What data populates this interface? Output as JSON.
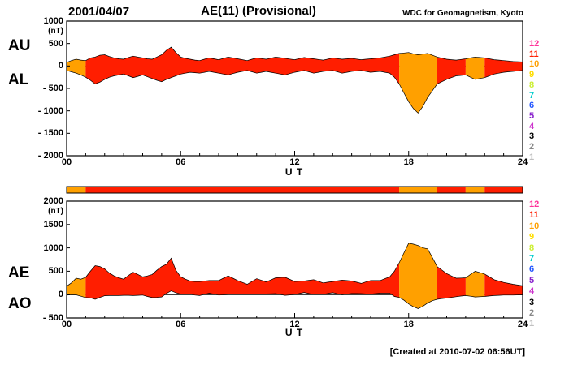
{
  "header": {
    "date": "2001/04/07",
    "title": "AE(11) (Provisional)",
    "credit": "WDC for Geomagnetism, Kyoto"
  },
  "footer": {
    "created": "[Created at 2010-07-02 06:56UT]"
  },
  "legend": {
    "values": [
      "12",
      "11",
      "10",
      "9",
      "8",
      "7",
      "6",
      "5",
      "4",
      "3",
      "2",
      "1"
    ],
    "colors": [
      "#ff3399",
      "#ff1e00",
      "#ffa000",
      "#ffdd00",
      "#ccee33",
      "#00cccc",
      "#2255ff",
      "#8822cc",
      "#cc33cc",
      "#000000",
      "#888888",
      "#c0c0c0"
    ]
  },
  "station_segments": [
    {
      "start": 0,
      "end": 1,
      "stations": 10
    },
    {
      "start": 1,
      "end": 17.5,
      "stations": 11
    },
    {
      "start": 17.5,
      "end": 19.5,
      "stations": 10
    },
    {
      "start": 19.5,
      "end": 21,
      "stations": 11
    },
    {
      "start": 21,
      "end": 22,
      "stations": 10
    },
    {
      "start": 22,
      "end": 24,
      "stations": 11
    }
  ],
  "chart_data": [
    {
      "type": "area",
      "name": "AU-AL panel",
      "left_labels": [
        "AU",
        "AL"
      ],
      "unit": "(nT)",
      "xlabel": "U T",
      "xlim": [
        0,
        24
      ],
      "ylim": [
        -2000,
        1000
      ],
      "ytick_values": [
        1000,
        500,
        0,
        -500,
        -1000,
        -1500,
        -2000
      ],
      "yticks": [
        "1000",
        "500",
        "0",
        "- 500",
        "- 1000",
        "- 1500",
        "- 2000"
      ],
      "xtick_values": [
        0,
        6,
        12,
        18,
        24
      ],
      "xticks": [
        "00",
        "06",
        "12",
        "18",
        "24"
      ],
      "x_step_hours": 0.25,
      "series": [
        {
          "name": "AU",
          "values": [
            80,
            120,
            150,
            130,
            120,
            180,
            200,
            240,
            250,
            210,
            180,
            160,
            150,
            190,
            220,
            200,
            180,
            160,
            150,
            200,
            250,
            350,
            420,
            300,
            200,
            170,
            150,
            130,
            120,
            150,
            180,
            160,
            140,
            170,
            200,
            180,
            160,
            140,
            120,
            150,
            180,
            165,
            150,
            175,
            200,
            185,
            170,
            155,
            140,
            165,
            190,
            175,
            160,
            145,
            130,
            155,
            180,
            165,
            150,
            160,
            170,
            155,
            140,
            150,
            160,
            170,
            180,
            200,
            220,
            250,
            280,
            290,
            300,
            270,
            250,
            265,
            280,
            240,
            200,
            175,
            150,
            140,
            130,
            145,
            160,
            180,
            200,
            190,
            180,
            160,
            140,
            130,
            120,
            110,
            100,
            95,
            90
          ]
        },
        {
          "name": "AL",
          "values": [
            -100,
            -130,
            -160,
            -200,
            -250,
            -320,
            -400,
            -360,
            -300,
            -250,
            -220,
            -200,
            -180,
            -220,
            -260,
            -230,
            -200,
            -240,
            -280,
            -320,
            -350,
            -300,
            -260,
            -220,
            -180,
            -160,
            -140,
            -150,
            -160,
            -140,
            -120,
            -140,
            -160,
            -180,
            -200,
            -170,
            -140,
            -120,
            -100,
            -130,
            -160,
            -140,
            -120,
            -140,
            -160,
            -180,
            -200,
            -170,
            -140,
            -120,
            -100,
            -130,
            -160,
            -140,
            -120,
            -110,
            -100,
            -130,
            -160,
            -140,
            -120,
            -110,
            -100,
            -120,
            -140,
            -130,
            -120,
            -140,
            -160,
            -250,
            -400,
            -600,
            -800,
            -950,
            -1050,
            -900,
            -700,
            -550,
            -400,
            -350,
            -300,
            -260,
            -220,
            -210,
            -200,
            -250,
            -300,
            -280,
            -260,
            -220,
            -180,
            -160,
            -140,
            -130,
            -120,
            -110,
            -100
          ]
        }
      ]
    },
    {
      "type": "area",
      "name": "AE-AO panel",
      "left_labels": [
        "AE",
        "AO"
      ],
      "unit": "(nT)",
      "xlabel": "U T",
      "xlim": [
        0,
        24
      ],
      "ylim": [
        -500,
        2000
      ],
      "ytick_values": [
        2000,
        1500,
        1000,
        500,
        0,
        -500
      ],
      "yticks": [
        "2000",
        "1500",
        "1000",
        "500",
        "0",
        "- 500"
      ],
      "xtick_values": [
        0,
        6,
        12,
        18,
        24
      ],
      "xticks": [
        "00",
        "06",
        "12",
        "18",
        "24"
      ],
      "x_step_hours": 0.25,
      "series": [
        {
          "name": "AE",
          "values": [
            180,
            250,
            350,
            330,
            370,
            500,
            620,
            600,
            550,
            460,
            400,
            360,
            330,
            410,
            480,
            430,
            380,
            400,
            430,
            520,
            600,
            650,
            780,
            520,
            380,
            330,
            290,
            280,
            280,
            290,
            300,
            300,
            300,
            350,
            400,
            350,
            300,
            260,
            220,
            280,
            340,
            305,
            270,
            315,
            360,
            365,
            370,
            325,
            280,
            285,
            290,
            305,
            320,
            285,
            250,
            265,
            280,
            295,
            310,
            300,
            290,
            265,
            240,
            270,
            300,
            300,
            300,
            340,
            380,
            500,
            680,
            890,
            1100,
            1080,
            1050,
            1000,
            980,
            790,
            600,
            525,
            450,
            400,
            350,
            355,
            360,
            430,
            500,
            470,
            440,
            380,
            320,
            290,
            260,
            240,
            220,
            205,
            190
          ]
        },
        {
          "name": "AO",
          "values": [
            -10,
            -5,
            -5,
            -35,
            -65,
            -70,
            -100,
            -60,
            -25,
            -20,
            -20,
            -20,
            -15,
            -15,
            -20,
            -15,
            -10,
            -40,
            -65,
            -60,
            -50,
            25,
            80,
            40,
            10,
            5,
            5,
            -10,
            -20,
            5,
            30,
            10,
            -10,
            -5,
            0,
            5,
            10,
            10,
            10,
            10,
            10,
            12,
            15,
            17,
            20,
            2,
            -15,
            -7,
            0,
            22,
            45,
            22,
            0,
            2,
            5,
            22,
            40,
            17,
            -5,
            10,
            25,
            22,
            20,
            15,
            10,
            20,
            30,
            30,
            30,
            -40,
            -60,
            -120,
            -200,
            -260,
            -300,
            -250,
            -180,
            -130,
            -100,
            -87,
            -75,
            -60,
            -45,
            -32,
            -20,
            -35,
            -50,
            -45,
            -40,
            -30,
            -20,
            -15,
            -10,
            -10,
            -10,
            -7,
            -5
          ]
        }
      ]
    }
  ]
}
